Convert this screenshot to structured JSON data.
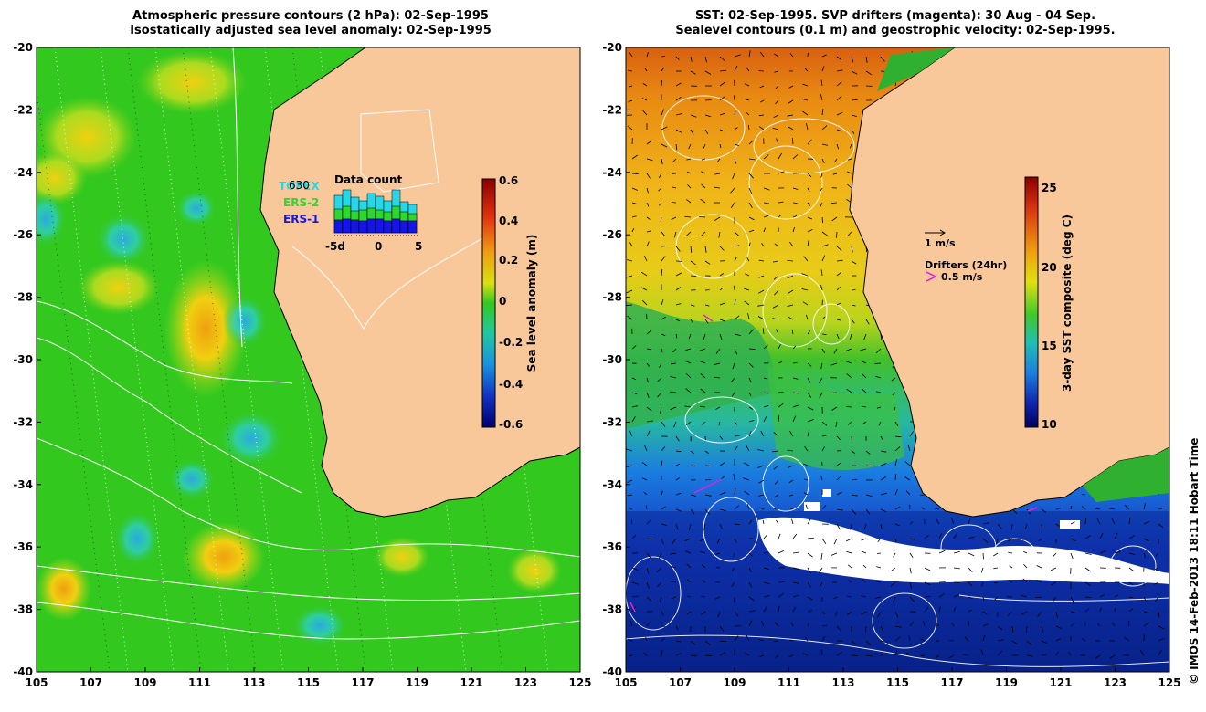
{
  "left_panel": {
    "title_line1": "Atmospheric pressure contours (2 hPa): 02-Sep-1995",
    "title_line2": "Isostatically adjusted sea level anomaly: 02-Sep-1995",
    "colorbar": {
      "label": "Sea level anomaly (m)",
      "ticks": [
        "0.6",
        "0.4",
        "0.2",
        "0",
        "-0.2",
        "-0.4",
        "-0.6"
      ]
    },
    "inset": {
      "title": "Data count",
      "count": "630",
      "missions": [
        "TOPEX",
        "ERS-2",
        "ERS-1"
      ],
      "mission_colors": [
        "#27d7e8",
        "#2fd62f",
        "#1414e6"
      ],
      "x_ticks": [
        "-5d",
        "0",
        "5"
      ]
    }
  },
  "right_panel": {
    "title_line1": "SST: 02-Sep-1995. SVP drifters (magenta): 30 Aug - 04 Sep.",
    "title_line2": "Sealevel contours (0.1 m) and geostrophic velocity: 02-Sep-1995.",
    "colorbar": {
      "label": "3-day SST composite (deg C)",
      "ticks": [
        "25",
        "20",
        "15",
        "10"
      ]
    },
    "velocity_legend": "1 m/s",
    "drifter_legend_title": "Drifters (24hr)",
    "drifter_legend_value": "0.5 m/s"
  },
  "axes": {
    "x_ticks": [
      "105",
      "107",
      "109",
      "111",
      "113",
      "115",
      "117",
      "119",
      "121",
      "123",
      "125"
    ],
    "y_ticks": [
      "-20",
      "-22",
      "-24",
      "-26",
      "-28",
      "-30",
      "-32",
      "-34",
      "-36",
      "-38",
      "-40"
    ]
  },
  "colors": {
    "land": "#f9c89a",
    "ocean_green": "#33c81e",
    "sst_warm": "#e89414",
    "sst_cold": "#0a1f9a"
  },
  "credit": "© IMOS 14-Feb-2013 18:11 Hobart Time"
}
